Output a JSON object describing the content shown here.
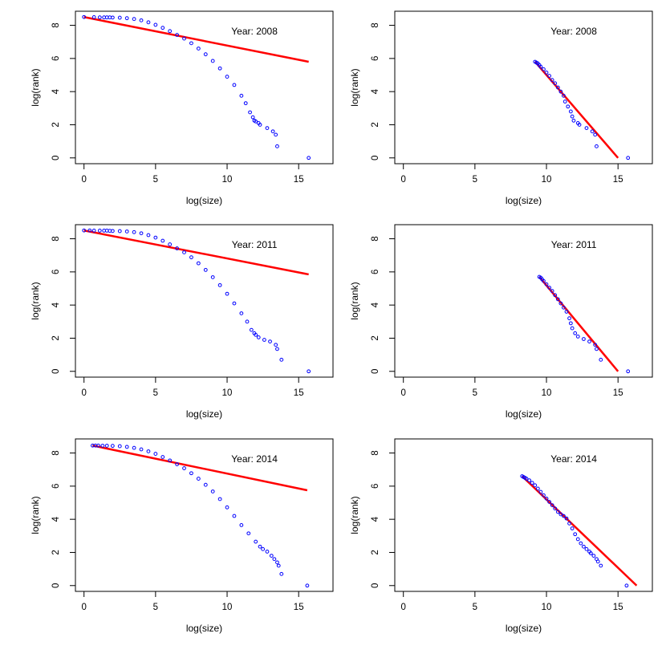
{
  "colors": {
    "points": "#0000ff",
    "fit_line": "#ff0000",
    "axes": "#000000",
    "background": "#ffffff"
  },
  "chart_data": [
    {
      "type": "scatter",
      "title": "Year: 2008",
      "xlabel": "log(size)",
      "ylabel": "log(rank)",
      "xlim": [
        -0.6,
        17.4
      ],
      "ylim": [
        -0.35,
        8.85
      ],
      "xticks": [
        0,
        5,
        10,
        15
      ],
      "yticks": [
        0,
        2,
        4,
        6,
        8
      ],
      "grid": false,
      "series": [
        {
          "kind": "points",
          "x": [
            0.0,
            0.7,
            1.1,
            1.4,
            1.6,
            1.8,
            2.0,
            2.5,
            3.0,
            3.5,
            4.0,
            4.5,
            5.0,
            5.5,
            6.0,
            6.5,
            7.0,
            7.5,
            8.0,
            8.5,
            9.0,
            9.5,
            10.0,
            10.5,
            11.0,
            11.3,
            11.6,
            11.8,
            11.9,
            12.0,
            12.2,
            12.3,
            12.8,
            13.2,
            13.4,
            13.5,
            15.7
          ],
          "y": [
            8.5,
            8.49,
            8.48,
            8.48,
            8.48,
            8.48,
            8.47,
            8.46,
            8.43,
            8.38,
            8.3,
            8.18,
            8.03,
            7.85,
            7.65,
            7.42,
            7.2,
            6.92,
            6.6,
            6.25,
            5.85,
            5.4,
            4.9,
            4.4,
            3.75,
            3.3,
            2.75,
            2.45,
            2.25,
            2.2,
            2.1,
            2.0,
            1.8,
            1.6,
            1.4,
            0.7,
            0.0
          ]
        },
        {
          "kind": "fit-line",
          "x": [
            0.0,
            15.7
          ],
          "y": [
            8.5,
            5.8
          ]
        }
      ]
    },
    {
      "type": "scatter",
      "title": "Year: 2008",
      "xlabel": "log(size)",
      "ylabel": "log(rank)",
      "xlim": [
        -0.6,
        17.4
      ],
      "ylim": [
        -0.35,
        8.85
      ],
      "xticks": [
        0,
        5,
        10,
        15
      ],
      "yticks": [
        0,
        2,
        4,
        6,
        8
      ],
      "grid": false,
      "series": [
        {
          "kind": "points",
          "x": [
            9.2,
            9.3,
            9.4,
            9.5,
            9.6,
            9.8,
            10.0,
            10.2,
            10.4,
            10.6,
            10.8,
            11.0,
            11.2,
            11.3,
            11.5,
            11.7,
            11.8,
            11.9,
            12.2,
            12.3,
            12.8,
            13.2,
            13.4,
            13.5,
            15.7
          ],
          "y": [
            5.8,
            5.75,
            5.7,
            5.6,
            5.5,
            5.35,
            5.15,
            4.95,
            4.7,
            4.5,
            4.25,
            4.0,
            3.75,
            3.4,
            3.1,
            2.8,
            2.5,
            2.25,
            2.1,
            2.0,
            1.8,
            1.6,
            1.4,
            0.7,
            0.0
          ]
        },
        {
          "kind": "fit-line",
          "x": [
            9.2,
            15.0
          ],
          "y": [
            5.8,
            0.0
          ]
        }
      ]
    },
    {
      "type": "scatter",
      "title": "Year: 2011",
      "xlabel": "log(size)",
      "ylabel": "log(rank)",
      "xlim": [
        -0.6,
        17.4
      ],
      "ylim": [
        -0.35,
        8.85
      ],
      "xticks": [
        0,
        5,
        10,
        15
      ],
      "yticks": [
        0,
        2,
        4,
        6,
        8
      ],
      "grid": false,
      "series": [
        {
          "kind": "points",
          "x": [
            0.0,
            0.4,
            0.7,
            1.1,
            1.4,
            1.6,
            1.8,
            2.0,
            2.5,
            3.0,
            3.5,
            4.0,
            4.5,
            5.0,
            5.5,
            6.0,
            6.5,
            7.0,
            7.5,
            8.0,
            8.5,
            9.0,
            9.5,
            10.0,
            10.5,
            11.0,
            11.4,
            11.7,
            11.9,
            12.0,
            12.2,
            12.6,
            13.0,
            13.4,
            13.5,
            13.8,
            15.7
          ],
          "y": [
            8.5,
            8.5,
            8.49,
            8.49,
            8.49,
            8.49,
            8.48,
            8.47,
            8.46,
            8.44,
            8.4,
            8.33,
            8.22,
            8.07,
            7.88,
            7.66,
            7.42,
            7.18,
            6.88,
            6.52,
            6.12,
            5.68,
            5.2,
            4.68,
            4.1,
            3.5,
            3.0,
            2.5,
            2.3,
            2.2,
            2.05,
            1.9,
            1.8,
            1.6,
            1.35,
            0.7,
            0.0
          ]
        },
        {
          "kind": "fit-line",
          "x": [
            0.0,
            15.7
          ],
          "y": [
            8.5,
            5.85
          ]
        }
      ]
    },
    {
      "type": "scatter",
      "title": "Year: 2011",
      "xlabel": "log(size)",
      "ylabel": "log(rank)",
      "xlim": [
        -0.6,
        17.4
      ],
      "ylim": [
        -0.35,
        8.85
      ],
      "xticks": [
        0,
        5,
        10,
        15
      ],
      "yticks": [
        0,
        2,
        4,
        6,
        8
      ],
      "grid": false,
      "series": [
        {
          "kind": "points",
          "x": [
            9.5,
            9.6,
            9.7,
            9.8,
            10.0,
            10.2,
            10.4,
            10.6,
            10.8,
            11.0,
            11.2,
            11.4,
            11.6,
            11.7,
            11.8,
            12.0,
            12.2,
            12.6,
            13.0,
            13.4,
            13.5,
            13.8,
            15.7
          ],
          "y": [
            5.7,
            5.65,
            5.55,
            5.45,
            5.25,
            5.05,
            4.85,
            4.6,
            4.35,
            4.1,
            3.85,
            3.6,
            3.2,
            2.9,
            2.6,
            2.3,
            2.1,
            1.95,
            1.8,
            1.6,
            1.35,
            0.7,
            0.0
          ]
        },
        {
          "kind": "fit-line",
          "x": [
            9.5,
            15.0
          ],
          "y": [
            5.7,
            0.0
          ]
        }
      ]
    },
    {
      "type": "scatter",
      "title": "Year: 2014",
      "xlabel": "log(size)",
      "ylabel": "log(rank)",
      "xlim": [
        -0.6,
        17.4
      ],
      "ylim": [
        -0.35,
        8.85
      ],
      "xticks": [
        0,
        5,
        10,
        15
      ],
      "yticks": [
        0,
        2,
        4,
        6,
        8
      ],
      "grid": false,
      "series": [
        {
          "kind": "points",
          "x": [
            0.6,
            0.8,
            1.0,
            1.3,
            1.6,
            2.0,
            2.5,
            3.0,
            3.5,
            4.0,
            4.5,
            5.0,
            5.5,
            6.0,
            6.5,
            7.0,
            7.5,
            8.0,
            8.5,
            9.0,
            9.5,
            10.0,
            10.5,
            11.0,
            11.5,
            12.0,
            12.3,
            12.5,
            12.8,
            13.1,
            13.3,
            13.5,
            13.6,
            13.8,
            15.6
          ],
          "y": [
            8.45,
            8.45,
            8.45,
            8.44,
            8.44,
            8.43,
            8.41,
            8.37,
            8.31,
            8.22,
            8.1,
            7.95,
            7.76,
            7.55,
            7.32,
            7.08,
            6.78,
            6.45,
            6.08,
            5.68,
            5.22,
            4.72,
            4.2,
            3.65,
            3.15,
            2.65,
            2.35,
            2.2,
            2.05,
            1.8,
            1.6,
            1.4,
            1.2,
            0.7,
            0.0
          ]
        },
        {
          "kind": "fit-line",
          "x": [
            0.6,
            15.6
          ],
          "y": [
            8.45,
            5.75
          ]
        }
      ]
    },
    {
      "type": "scatter",
      "title": "Year: 2014",
      "xlabel": "log(size)",
      "ylabel": "log(rank)",
      "xlim": [
        -0.6,
        17.4
      ],
      "ylim": [
        -0.35,
        8.85
      ],
      "xticks": [
        0,
        5,
        10,
        15
      ],
      "yticks": [
        0,
        2,
        4,
        6,
        8
      ],
      "grid": false,
      "series": [
        {
          "kind": "points",
          "x": [
            8.3,
            8.4,
            8.5,
            8.6,
            8.8,
            9.0,
            9.2,
            9.4,
            9.6,
            9.8,
            10.0,
            10.2,
            10.4,
            10.6,
            10.8,
            11.0,
            11.2,
            11.4,
            11.6,
            11.8,
            12.0,
            12.2,
            12.4,
            12.6,
            12.8,
            13.0,
            13.1,
            13.3,
            13.5,
            13.6,
            13.8,
            15.6
          ],
          "y": [
            6.6,
            6.55,
            6.5,
            6.45,
            6.35,
            6.2,
            6.05,
            5.85,
            5.65,
            5.45,
            5.25,
            5.05,
            4.85,
            4.65,
            4.45,
            4.3,
            4.2,
            4.05,
            3.75,
            3.45,
            3.1,
            2.8,
            2.55,
            2.35,
            2.2,
            2.05,
            1.95,
            1.8,
            1.6,
            1.45,
            1.2,
            0.0
          ]
        },
        {
          "kind": "fit-line",
          "x": [
            8.3,
            16.3
          ],
          "y": [
            6.6,
            0.0
          ]
        }
      ]
    }
  ]
}
